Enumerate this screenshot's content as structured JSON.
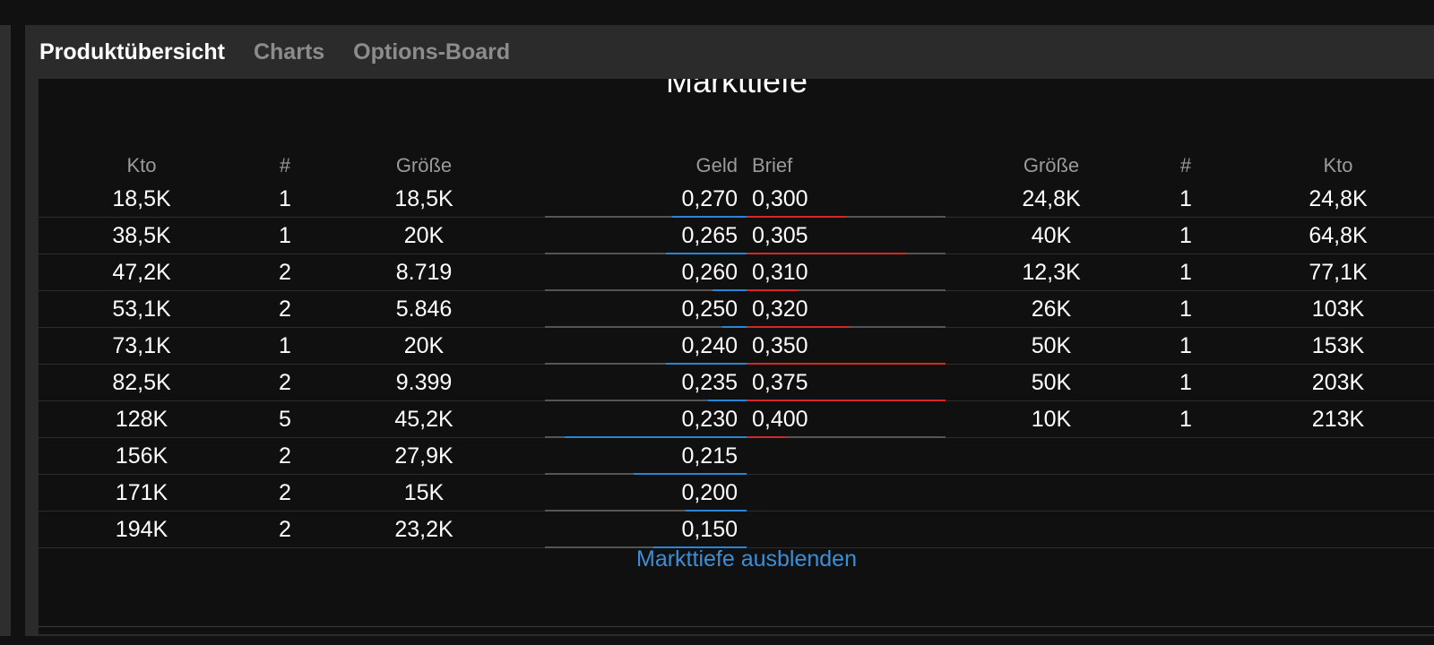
{
  "tabs": [
    {
      "label": "Produktübersicht",
      "active": true
    },
    {
      "label": "Charts",
      "active": false
    },
    {
      "label": "Options-Board",
      "active": false
    }
  ],
  "depth": {
    "title": "Markttiefe",
    "headers": {
      "bid_account": "Kto",
      "bid_count": "#",
      "bid_size": "Größe",
      "bid_price": "Geld",
      "ask_price": "Brief",
      "ask_size": "Größe",
      "ask_count": "#",
      "ask_account": "Kto"
    },
    "rows": [
      {
        "bid_account": "18,5K",
        "bid_count": "1",
        "bid_size": "18,5K",
        "bid_price": "0,270",
        "ask_price": "0,300",
        "ask_size": "24,8K",
        "ask_count": "1",
        "ask_account": "24,8K",
        "bid_fill": 0.37,
        "ask_fill": 0.5
      },
      {
        "bid_account": "38,5K",
        "bid_count": "1",
        "bid_size": "20K",
        "bid_price": "0,265",
        "ask_price": "0,305",
        "ask_size": "40K",
        "ask_count": "1",
        "ask_account": "64,8K",
        "bid_fill": 0.4,
        "ask_fill": 0.8
      },
      {
        "bid_account": "47,2K",
        "bid_count": "2",
        "bid_size": "8.719",
        "bid_price": "0,260",
        "ask_price": "0,310",
        "ask_size": "12,3K",
        "ask_count": "1",
        "ask_account": "77,1K",
        "bid_fill": 0.17,
        "ask_fill": 0.25
      },
      {
        "bid_account": "53,1K",
        "bid_count": "2",
        "bid_size": "5.846",
        "bid_price": "0,250",
        "ask_price": "0,320",
        "ask_size": "26K",
        "ask_count": "1",
        "ask_account": "103K",
        "bid_fill": 0.12,
        "ask_fill": 0.52
      },
      {
        "bid_account": "73,1K",
        "bid_count": "1",
        "bid_size": "20K",
        "bid_price": "0,240",
        "ask_price": "0,350",
        "ask_size": "50K",
        "ask_count": "1",
        "ask_account": "153K",
        "bid_fill": 0.4,
        "ask_fill": 1.0
      },
      {
        "bid_account": "82,5K",
        "bid_count": "2",
        "bid_size": "9.399",
        "bid_price": "0,235",
        "ask_price": "0,375",
        "ask_size": "50K",
        "ask_count": "1",
        "ask_account": "203K",
        "bid_fill": 0.19,
        "ask_fill": 1.0
      },
      {
        "bid_account": "128K",
        "bid_count": "5",
        "bid_size": "45,2K",
        "bid_price": "0,230",
        "ask_price": "0,400",
        "ask_size": "10K",
        "ask_count": "1",
        "ask_account": "213K",
        "bid_fill": 0.9,
        "ask_fill": 0.2
      },
      {
        "bid_account": "156K",
        "bid_count": "2",
        "bid_size": "27,9K",
        "bid_price": "0,215",
        "bid_fill": 0.56
      },
      {
        "bid_account": "171K",
        "bid_count": "2",
        "bid_size": "15K",
        "bid_price": "0,200",
        "bid_fill": 0.3
      },
      {
        "bid_account": "194K",
        "bid_count": "2",
        "bid_size": "23,2K",
        "bid_price": "0,150",
        "bid_fill": 0.46
      }
    ],
    "toggle_label": "Markttiefe ausblenden"
  },
  "colors": {
    "bid_bar": "#2a86d4",
    "ask_bar": "#d62828",
    "link": "#3a8fd8"
  }
}
